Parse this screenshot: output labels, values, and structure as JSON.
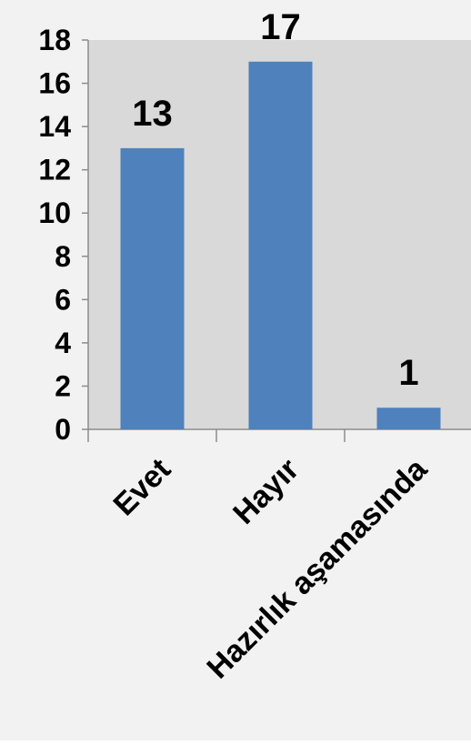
{
  "chart_data": {
    "type": "bar",
    "categories": [
      "Evet",
      "Hayır",
      "Hazırlık aşamasında"
    ],
    "values": [
      13,
      17,
      1
    ],
    "data_labels": [
      "13",
      "17",
      "1"
    ],
    "ylim": [
      0,
      18
    ],
    "y_ticks": [
      0,
      2,
      4,
      6,
      8,
      10,
      12,
      14,
      16,
      18
    ],
    "title": "",
    "xlabel": "",
    "ylabel": "",
    "grid": false,
    "legend": "none",
    "colors": {
      "page_background": "#f2f2f2",
      "plot_background": "#d9d9d9",
      "bar": "#4f81bd",
      "axis": "#8c8c8c",
      "text": "#000000"
    }
  }
}
